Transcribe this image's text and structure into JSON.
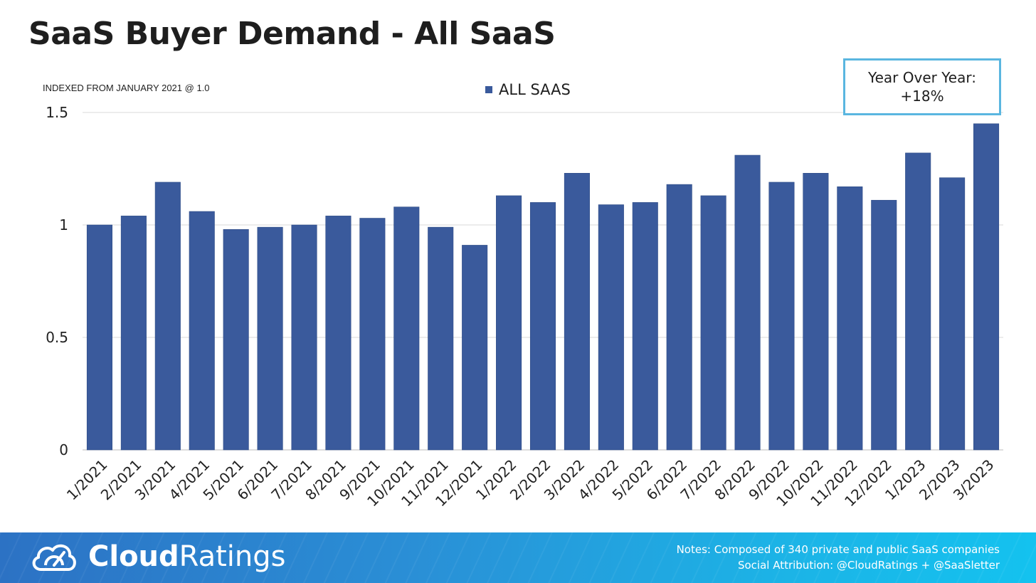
{
  "header": {
    "title": "SaaS Buyer Demand - All SaaS",
    "subtitle": "INDEXED FROM JANUARY 2021 @ 1.0"
  },
  "callout": {
    "line1": "Year Over Year:",
    "line2": "+18%"
  },
  "chart_data": {
    "type": "bar",
    "title": "SaaS Buyer Demand - All SaaS",
    "subtitle": "INDEXED FROM JANUARY 2021 @ 1.0",
    "legend_position": "top-center",
    "grid": true,
    "ylim": [
      0,
      1.5
    ],
    "yticks": [
      "0",
      "0.5",
      "1",
      "1.5"
    ],
    "categories": [
      "1/2021",
      "2/2021",
      "3/2021",
      "4/2021",
      "5/2021",
      "6/2021",
      "7/2021",
      "8/2021",
      "9/2021",
      "10/2021",
      "11/2021",
      "12/2021",
      "1/2022",
      "2/2022",
      "3/2022",
      "4/2022",
      "5/2022",
      "6/2022",
      "7/2022",
      "8/2022",
      "9/2022",
      "10/2022",
      "11/2022",
      "12/2022",
      "1/2023",
      "2/2023",
      "3/2023"
    ],
    "series": [
      {
        "name": "ALL SAAS",
        "color": "#3a5a9c",
        "values": [
          1.0,
          1.04,
          1.19,
          1.06,
          0.98,
          0.99,
          1.0,
          1.04,
          1.03,
          1.08,
          0.99,
          0.91,
          1.13,
          1.1,
          1.23,
          1.09,
          1.1,
          1.18,
          1.13,
          1.31,
          1.19,
          1.23,
          1.17,
          1.11,
          1.32,
          1.21,
          1.45
        ]
      }
    ]
  },
  "footer": {
    "brand_bold": "Cloud",
    "brand_light": "Ratings",
    "notes_line1": "Notes: Composed of 340 private and public SaaS companies",
    "notes_line2": "Social Attribution: @CloudRatings + @SaaSletter",
    "icon": "cloud-gauge-icon"
  }
}
